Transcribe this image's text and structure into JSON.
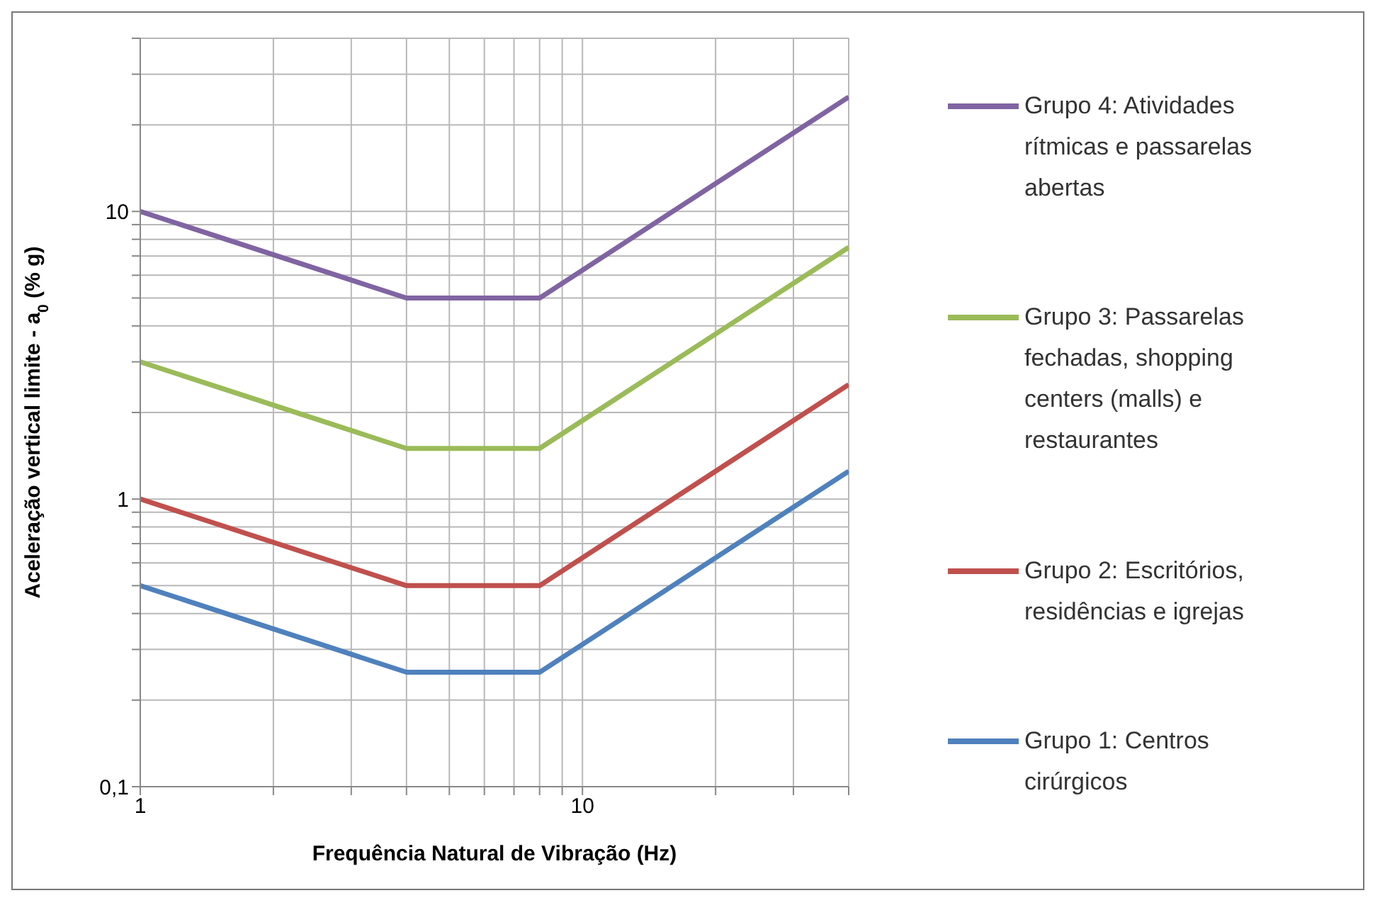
{
  "chart_data": {
    "type": "line",
    "xlabel": "Frequência Natural de Vibração (Hz)",
    "ylabel": "Aceleração vertical limite - a$_{0}$ (% g)",
    "log": "xy",
    "xlim": [
      1,
      40
    ],
    "xticks": [
      1,
      {
        "value": 2,
        "label": null
      },
      {
        "value": 3,
        "label": null
      },
      {
        "value": 4,
        "label": null
      },
      {
        "value": 5,
        "label": null
      },
      {
        "value": 6,
        "label": null
      },
      {
        "value": 7,
        "label": null
      },
      {
        "value": 8,
        "label": null
      },
      {
        "value": 9,
        "label": null
      },
      10,
      {
        "value": 20,
        "label": null
      },
      {
        "value": 30,
        "label": null
      },
      {
        "value": 40,
        "label": null
      }
    ],
    "ylim": [
      0.1,
      40
    ],
    "yticks": [
      {
        "value": 0.1,
        "label": "0,1"
      },
      {
        "value": 0.2,
        "label": null
      },
      {
        "value": 0.3,
        "label": null
      },
      {
        "value": 0.4,
        "label": null
      },
      {
        "value": 0.5,
        "label": null
      },
      {
        "value": 0.6,
        "label": null
      },
      {
        "value": 0.7,
        "label": null
      },
      {
        "value": 0.8,
        "label": null
      },
      {
        "value": 0.9,
        "label": null
      },
      1,
      {
        "value": 2,
        "label": null
      },
      {
        "value": 3,
        "label": null
      },
      {
        "value": 4,
        "label": null
      },
      {
        "value": 5,
        "label": null
      },
      {
        "value": 6,
        "label": null
      },
      {
        "value": 7,
        "label": null
      },
      {
        "value": 8,
        "label": null
      },
      {
        "value": 9,
        "label": null
      },
      10,
      {
        "value": 20,
        "label": null
      },
      {
        "value": 30,
        "label": null
      },
      {
        "value": 40,
        "label": null
      }
    ],
    "grid": true,
    "legend": "right",
    "marker": "none",
    "line_style": "solid",
    "series": [
      {
        "name": "Grupo 4: Atividades rítmicas e passarelas abertas",
        "color": "#8064a2",
        "x": [
          1,
          4,
          8,
          40
        ],
        "values": [
          10,
          5,
          5,
          25
        ]
      },
      {
        "name": "Grupo 3: Passarelas fechadas, shopping centers (malls) e restaurantes",
        "color": "#9bbb59",
        "x": [
          1,
          4,
          8,
          40
        ],
        "values": [
          3,
          1.5,
          1.5,
          7.5
        ]
      },
      {
        "name": "Grupo 2: Escritórios, residências e igrejas",
        "color": "#c0504d",
        "x": [
          1,
          4,
          8,
          40
        ],
        "values": [
          1,
          0.5,
          0.5,
          2.5
        ]
      },
      {
        "name": "Grupo 1: Centros cirúrgicos",
        "color": "#4f81bd",
        "x": [
          1,
          4,
          8,
          40
        ],
        "values": [
          0.5,
          0.25,
          0.25,
          1.25
        ]
      }
    ]
  }
}
